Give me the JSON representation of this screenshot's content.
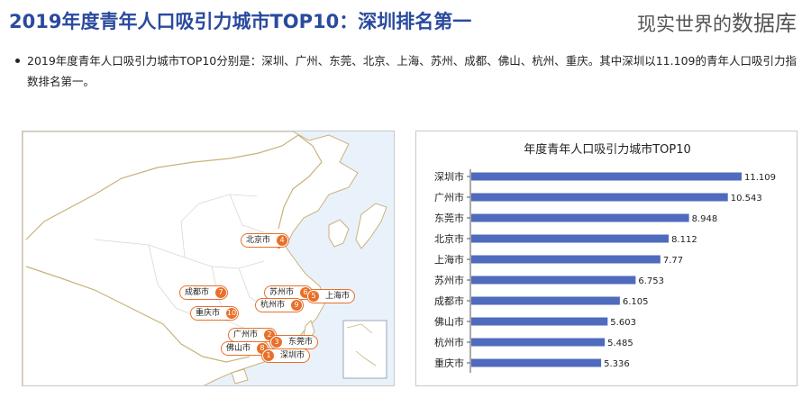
{
  "header": {
    "title": "2019年度青年人口吸引力城市TOP10：深圳排名第一",
    "watermark_small": "现实世界的",
    "watermark_big": "数据库"
  },
  "summary": {
    "text": "2019年度青年人口吸引力城市TOP10分别是：深圳、广州、东莞、北京、上海、苏州、成都、佛山、杭州、重庆。其中深圳以11.109的青年人口吸引力指数排名第一。"
  },
  "map": {
    "tags": [
      {
        "name": "北京市",
        "rank": "4"
      },
      {
        "name": "苏州市",
        "rank": "6"
      },
      {
        "name": "上海市",
        "rank": "5"
      },
      {
        "name": "杭州市",
        "rank": "9"
      },
      {
        "name": "成都市",
        "rank": "7"
      },
      {
        "name": "重庆市",
        "rank": "10"
      },
      {
        "name": "广州市",
        "rank": "2"
      },
      {
        "name": "东莞市",
        "rank": "3"
      },
      {
        "name": "佛山市",
        "rank": "8"
      },
      {
        "name": "深圳市",
        "rank": "1"
      }
    ]
  },
  "colors": {
    "bar": "#4f6bbd",
    "accent": "#e8702a",
    "title": "#2b4a9e"
  },
  "chart_data": {
    "type": "bar",
    "orientation": "horizontal",
    "title": "年度青年人口吸引力城市TOP10",
    "categories": [
      "深圳市",
      "广州市",
      "东莞市",
      "北京市",
      "上海市",
      "苏州市",
      "成都市",
      "佛山市",
      "杭州市",
      "重庆市"
    ],
    "values": [
      11.109,
      10.543,
      8.948,
      8.112,
      7.77,
      6.753,
      6.105,
      5.603,
      5.485,
      5.336
    ],
    "value_labels": [
      "11.109",
      "10.543",
      "8.948",
      "8.112",
      "7.77",
      "6.753",
      "6.105",
      "5.603",
      "5.485",
      "5.336"
    ],
    "xlim": [
      0,
      11.109
    ],
    "grid": false,
    "legend": "none"
  }
}
